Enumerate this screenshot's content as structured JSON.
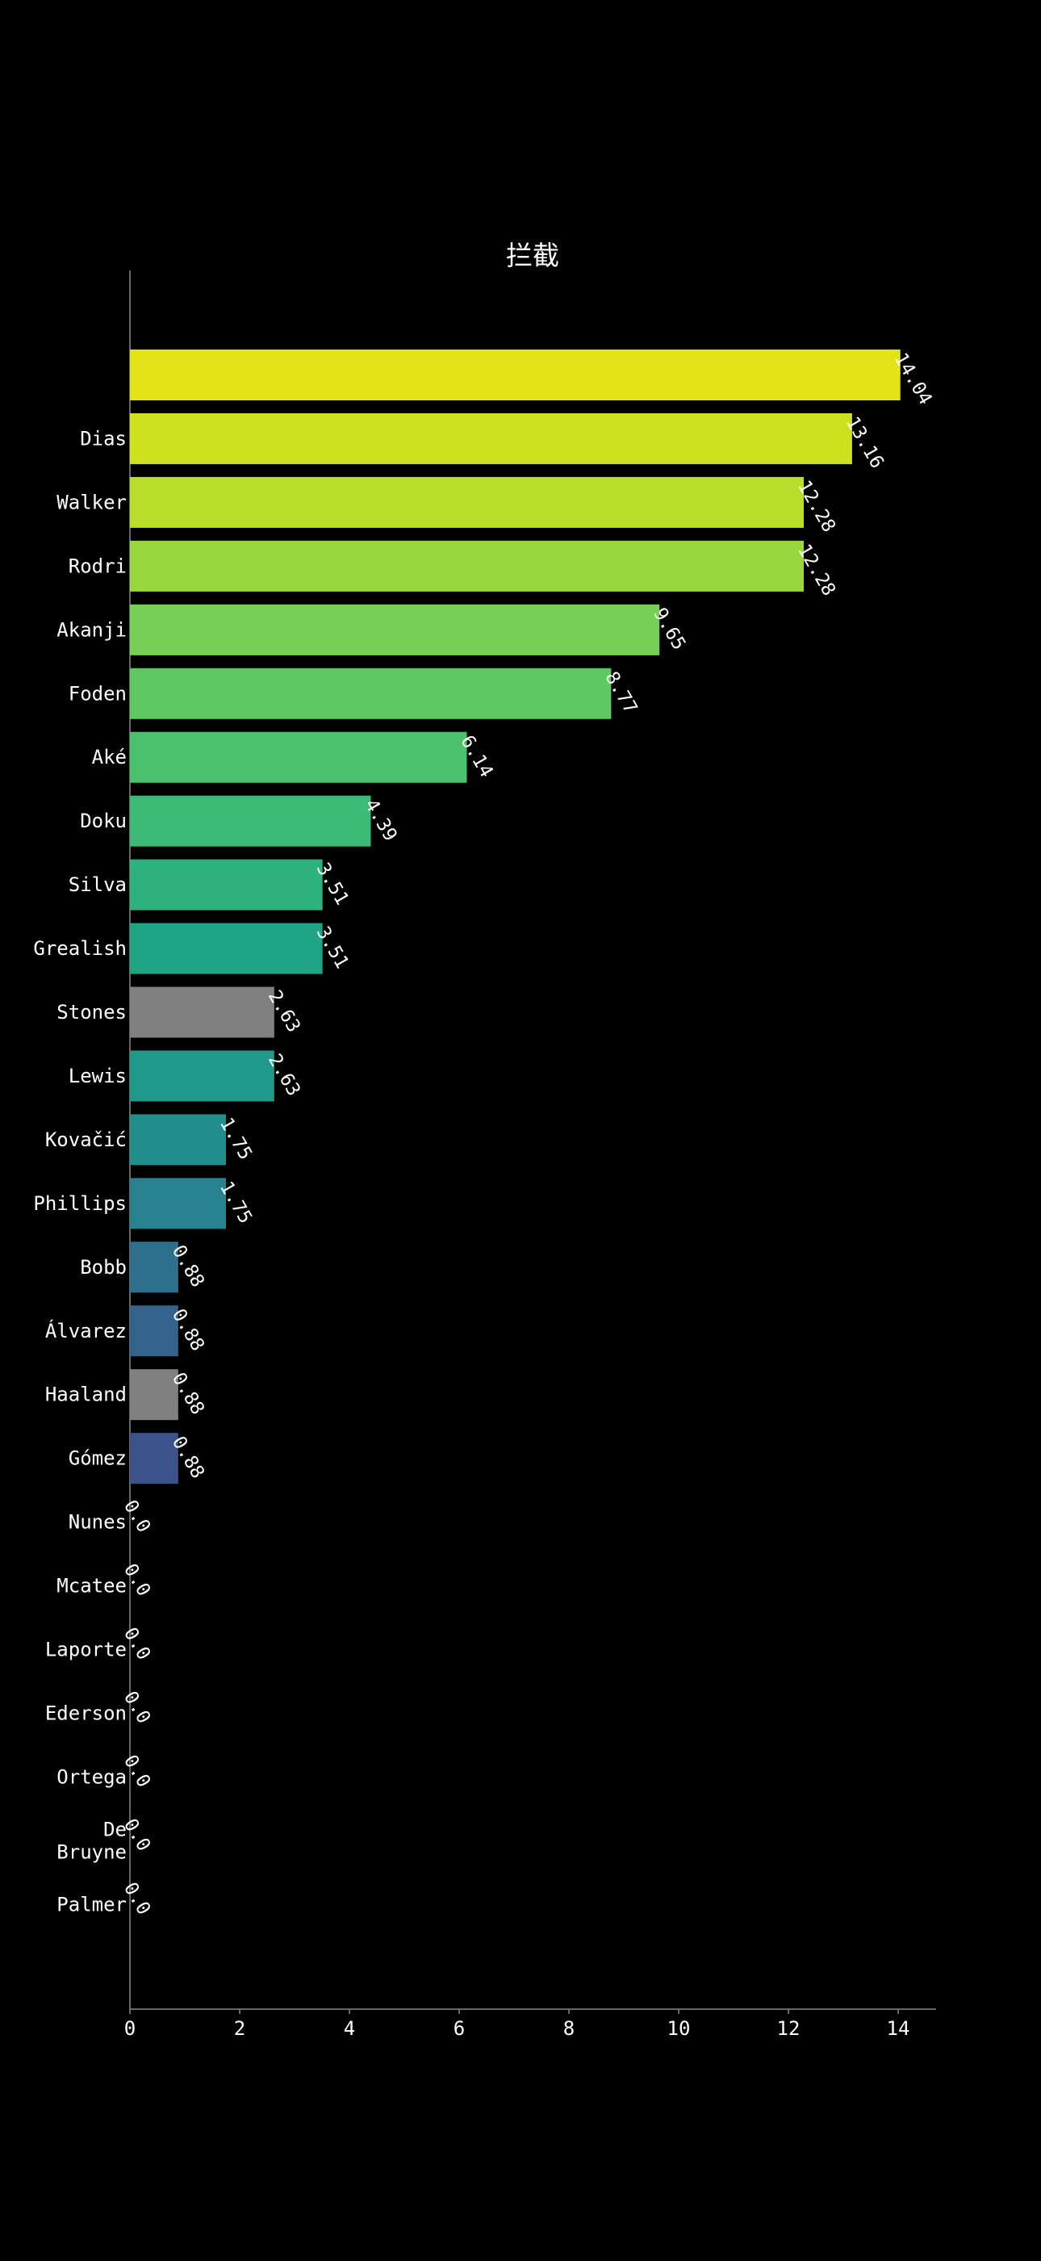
{
  "chart_data": {
    "type": "bar",
    "orientation": "horizontal",
    "title": "拦截",
    "xlabel": "",
    "ylabel": "",
    "xlim": [
      0,
      14.7
    ],
    "xticks": [
      0,
      2,
      4,
      6,
      8,
      10,
      12,
      14
    ],
    "grid": false,
    "legend": "none",
    "categories": [
      "",
      "Dias",
      "Walker",
      "Rodri",
      "Akanji",
      "Foden",
      "Aké",
      "Doku",
      "Silva",
      "Grealish",
      "Stones",
      "Lewis",
      "Kovačić",
      "Phillips",
      "Bobb",
      "Álvarez",
      "Haaland",
      "Gómez",
      "Nunes",
      "Mcatee",
      "Laporte",
      "Ederson",
      "Ortega",
      "De\nBruyne",
      "Palmer"
    ],
    "values": [
      14.04,
      13.16,
      12.28,
      12.28,
      9.65,
      8.77,
      6.14,
      4.39,
      3.51,
      3.51,
      2.63,
      2.63,
      1.75,
      1.75,
      0.88,
      0.88,
      0.88,
      0.88,
      0.0,
      0.0,
      0.0,
      0.0,
      0.0,
      0.0,
      0.0
    ],
    "colors": [
      "#e3e418",
      "#cde11d",
      "#b8de29",
      "#98d83e",
      "#75d054",
      "#5ec962",
      "#4ac16d",
      "#3bbb75",
      "#2db27d",
      "#20a486",
      "#808080",
      "#1f9a8a",
      "#228d8d",
      "#26828e",
      "#2d708e",
      "#33638d",
      "#808080",
      "#3b528b",
      "#414487",
      "#453581",
      "#482374",
      "#481668",
      "#470d60",
      "#46085c",
      "#440154"
    ],
    "background": "#000000",
    "text_color": "#ffffff",
    "axis_color": "#888888"
  }
}
